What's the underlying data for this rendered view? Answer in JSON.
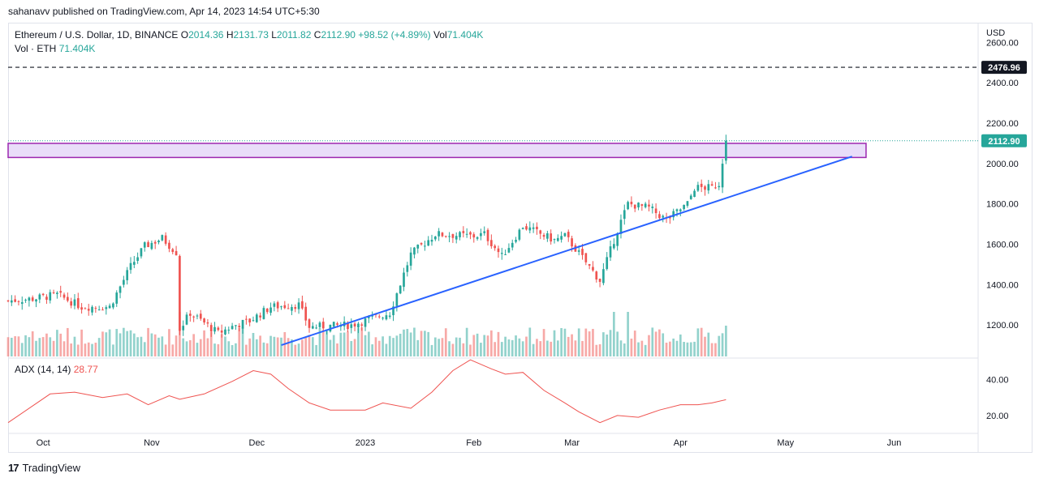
{
  "header": {
    "published": "sahanavv published on TradingView.com, Apr 14, 2023 14:54 UTC+5:30"
  },
  "legend": {
    "symbol": "Ethereum / U.S. Dollar, 1D, BINANCE",
    "o_label": "O",
    "o": "2014.36",
    "h_label": "H",
    "h": "2131.73",
    "l_label": "L",
    "l": "2011.82",
    "c_label": "C",
    "c": "2112.90",
    "change": "+98.52 (+4.89%)",
    "vol_label": "Vol",
    "vol": "71.404K",
    "vol_eth_label": "Vol · ETH",
    "vol_eth": "71.404K"
  },
  "adx": {
    "label": "ADX (14, 14)",
    "value": "28.77"
  },
  "footer": {
    "brand": "TradingView",
    "logo": "17"
  },
  "colors": {
    "up": "#26a69a",
    "down": "#ef5350",
    "trend": "#2962ff",
    "zone_fill": "#e9ddf9",
    "zone_border": "#9c27b0",
    "adx_line": "#ef5350",
    "price_tag": "#26a69a",
    "level_tag": "#131722"
  },
  "chart_data": [
    {
      "type": "candlestick",
      "currency_label": "USD",
      "y_ticks": [
        "1200.00",
        "1400.00",
        "1600.00",
        "1800.00",
        "2000.00",
        "2200.00",
        "2400.00",
        "2600.00"
      ],
      "y_tick_values": [
        1200,
        1400,
        1600,
        1800,
        2000,
        2200,
        2400,
        2600
      ],
      "x_ticks": [
        "Oct",
        "Nov",
        "Dec",
        "2023",
        "Feb",
        "Mar",
        "Apr",
        "May",
        "Jun"
      ],
      "x_tick_dates": [
        "2022-10-01",
        "2022-11-01",
        "2022-12-01",
        "2023-01-01",
        "2023-02-01",
        "2023-03-01",
        "2023-04-01",
        "2023-05-01",
        "2023-06-01"
      ],
      "x_range": [
        "2022-09-21",
        "2023-06-25"
      ],
      "y_range": [
        1040,
        2690
      ],
      "horizontal_level": {
        "value": 2476.96,
        "label": "2476.96",
        "style": "dashed"
      },
      "last_price": {
        "value": 2112.9,
        "label": "2112.90"
      },
      "resistance_zone": {
        "from_date": "2022-09-21",
        "to_date": "2023-05-24",
        "low": 2030,
        "high": 2100
      },
      "trendline": {
        "from": [
          "2022-12-08",
          1100
        ],
        "to": [
          "2023-05-20",
          2035
        ]
      },
      "close_anchors": [
        [
          "2022-09-21",
          1320
        ],
        [
          "2022-09-28",
          1330
        ],
        [
          "2022-10-05",
          1350
        ],
        [
          "2022-10-12",
          1290
        ],
        [
          "2022-10-20",
          1290
        ],
        [
          "2022-10-26",
          1490
        ],
        [
          "2022-10-30",
          1590
        ],
        [
          "2022-11-04",
          1630
        ],
        [
          "2022-11-08",
          1560
        ],
        [
          "2022-11-09",
          1180
        ],
        [
          "2022-11-12",
          1260
        ],
        [
          "2022-11-20",
          1160
        ],
        [
          "2022-11-25",
          1200
        ],
        [
          "2022-11-29",
          1220
        ],
        [
          "2022-12-05",
          1290
        ],
        [
          "2022-12-13",
          1300
        ],
        [
          "2022-12-16",
          1190
        ],
        [
          "2022-12-28",
          1200
        ],
        [
          "2023-01-08",
          1260
        ],
        [
          "2023-01-14",
          1550
        ],
        [
          "2023-01-21",
          1650
        ],
        [
          "2023-02-01",
          1640
        ],
        [
          "2023-02-04",
          1650
        ],
        [
          "2023-02-09",
          1540
        ],
        [
          "2023-02-15",
          1690
        ],
        [
          "2023-02-24",
          1620
        ],
        [
          "2023-02-27",
          1640
        ],
        [
          "2023-03-01",
          1600
        ],
        [
          "2023-03-09",
          1420
        ],
        [
          "2023-03-14",
          1670
        ],
        [
          "2023-03-17",
          1800
        ],
        [
          "2023-03-23",
          1780
        ],
        [
          "2023-03-28",
          1720
        ],
        [
          "2023-04-03",
          1800
        ],
        [
          "2023-04-05",
          1880
        ],
        [
          "2023-04-10",
          1880
        ],
        [
          "2023-04-12",
          1900
        ],
        [
          "2023-04-13",
          2014
        ],
        [
          "2023-04-14",
          2112.9
        ]
      ]
    },
    {
      "type": "bar",
      "series_label": "Vol · ETH",
      "x_range": [
        "2022-09-21",
        "2023-04-14"
      ],
      "peaks": [
        [
          "2022-11-09",
          "high"
        ],
        [
          "2023-03-13",
          "high"
        ],
        [
          "2023-03-17",
          "high"
        ]
      ]
    },
    {
      "type": "line",
      "series_label": "ADX (14, 14)",
      "y_ticks": [
        "20.00",
        "40.00"
      ],
      "y_tick_values": [
        20,
        40
      ],
      "y_range": [
        10,
        52
      ],
      "points": [
        [
          "2022-09-21",
          16
        ],
        [
          "2022-10-03",
          32
        ],
        [
          "2022-10-10",
          33
        ],
        [
          "2022-10-18",
          30
        ],
        [
          "2022-10-25",
          32
        ],
        [
          "2022-10-31",
          26
        ],
        [
          "2022-11-06",
          31
        ],
        [
          "2022-11-09",
          29
        ],
        [
          "2022-11-16",
          32
        ],
        [
          "2022-11-24",
          39
        ],
        [
          "2022-11-30",
          45
        ],
        [
          "2022-12-05",
          43
        ],
        [
          "2022-12-10",
          35
        ],
        [
          "2022-12-16",
          27
        ],
        [
          "2022-12-22",
          23
        ],
        [
          "2023-01-01",
          23
        ],
        [
          "2023-01-06",
          27
        ],
        [
          "2023-01-14",
          24
        ],
        [
          "2023-01-20",
          33
        ],
        [
          "2023-01-26",
          45
        ],
        [
          "2023-01-31",
          51
        ],
        [
          "2023-02-06",
          46
        ],
        [
          "2023-02-10",
          43
        ],
        [
          "2023-02-15",
          44
        ],
        [
          "2023-02-21",
          34
        ],
        [
          "2023-02-27",
          27
        ],
        [
          "2023-03-03",
          22
        ],
        [
          "2023-03-09",
          16
        ],
        [
          "2023-03-14",
          20
        ],
        [
          "2023-03-20",
          19
        ],
        [
          "2023-03-26",
          23
        ],
        [
          "2023-04-01",
          26
        ],
        [
          "2023-04-06",
          26
        ],
        [
          "2023-04-10",
          27
        ],
        [
          "2023-04-14",
          28.77
        ]
      ]
    }
  ]
}
